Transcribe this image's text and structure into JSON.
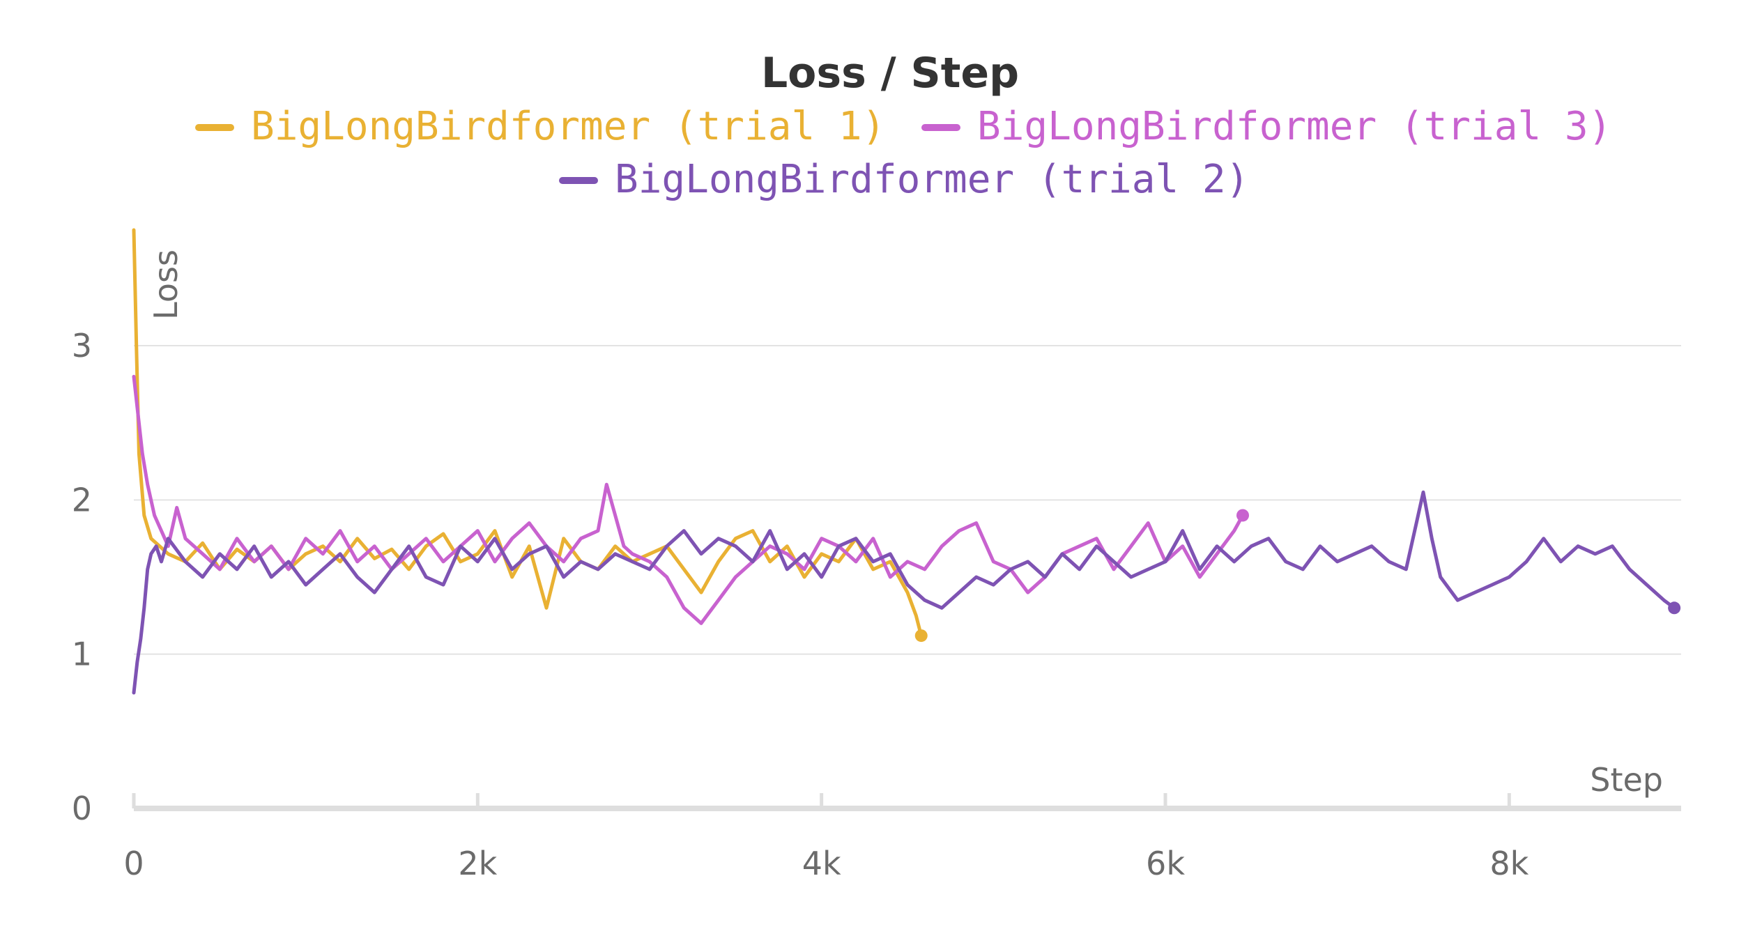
{
  "chart_data": {
    "type": "line",
    "title": "Loss / Step",
    "xlabel": "Step",
    "ylabel": "Loss",
    "xlim": [
      0,
      9000
    ],
    "ylim": [
      0,
      3.75
    ],
    "x_ticks": [
      0,
      2000,
      4000,
      6000,
      8000
    ],
    "x_tick_labels": [
      "0",
      "2k",
      "4k",
      "6k",
      "8k"
    ],
    "y_ticks": [
      0,
      1,
      2,
      3
    ],
    "y_tick_labels": [
      "0",
      "1",
      "2",
      "3"
    ],
    "grid": true,
    "legend_position": "top",
    "series": [
      {
        "name": "BigLongBirdformer (trial 1)",
        "color": "#E9B133",
        "x": [
          0,
          15,
          30,
          60,
          100,
          150,
          200,
          300,
          400,
          500,
          600,
          700,
          800,
          900,
          1000,
          1100,
          1200,
          1300,
          1400,
          1500,
          1600,
          1700,
          1800,
          1900,
          2000,
          2100,
          2200,
          2300,
          2400,
          2500,
          2600,
          2700,
          2800,
          2900,
          3000,
          3100,
          3200,
          3300,
          3400,
          3500,
          3600,
          3700,
          3800,
          3900,
          4000,
          4100,
          4200,
          4300,
          4400,
          4450,
          4500,
          4550,
          4580
        ],
        "y": [
          3.75,
          3.0,
          2.3,
          1.9,
          1.75,
          1.7,
          1.65,
          1.6,
          1.72,
          1.55,
          1.68,
          1.6,
          1.7,
          1.55,
          1.65,
          1.7,
          1.6,
          1.75,
          1.62,
          1.68,
          1.55,
          1.7,
          1.78,
          1.6,
          1.65,
          1.8,
          1.5,
          1.7,
          1.3,
          1.75,
          1.6,
          1.55,
          1.7,
          1.6,
          1.65,
          1.7,
          1.55,
          1.4,
          1.6,
          1.75,
          1.8,
          1.6,
          1.7,
          1.5,
          1.65,
          1.6,
          1.75,
          1.55,
          1.6,
          1.5,
          1.4,
          1.25,
          1.12
        ]
      },
      {
        "name": "BigLongBirdformer (trial 3)",
        "color": "#C862CF",
        "x": [
          0,
          20,
          50,
          80,
          120,
          160,
          200,
          250,
          300,
          400,
          500,
          600,
          700,
          800,
          900,
          1000,
          1100,
          1200,
          1300,
          1400,
          1500,
          1600,
          1700,
          1800,
          1900,
          2000,
          2100,
          2200,
          2300,
          2400,
          2500,
          2600,
          2700,
          2750,
          2800,
          2850,
          2900,
          3000,
          3100,
          3200,
          3300,
          3400,
          3500,
          3600,
          3700,
          3800,
          3900,
          4000,
          4100,
          4200,
          4300,
          4400,
          4500,
          4600,
          4700,
          4800,
          4900,
          5000,
          5100,
          5200,
          5300,
          5400,
          5500,
          5600,
          5700,
          5800,
          5900,
          6000,
          6100,
          6200,
          6300,
          6400,
          6450
        ],
        "y": [
          2.8,
          2.6,
          2.3,
          2.1,
          1.9,
          1.8,
          1.7,
          1.95,
          1.75,
          1.65,
          1.55,
          1.75,
          1.6,
          1.7,
          1.55,
          1.75,
          1.65,
          1.8,
          1.6,
          1.7,
          1.55,
          1.65,
          1.75,
          1.6,
          1.7,
          1.8,
          1.6,
          1.75,
          1.85,
          1.7,
          1.6,
          1.75,
          1.8,
          2.1,
          1.9,
          1.7,
          1.65,
          1.6,
          1.5,
          1.3,
          1.2,
          1.35,
          1.5,
          1.6,
          1.7,
          1.65,
          1.55,
          1.75,
          1.7,
          1.6,
          1.75,
          1.5,
          1.6,
          1.55,
          1.7,
          1.8,
          1.85,
          1.6,
          1.55,
          1.4,
          1.5,
          1.65,
          1.7,
          1.75,
          1.55,
          1.7,
          1.85,
          1.6,
          1.7,
          1.5,
          1.65,
          1.8,
          1.9
        ]
      },
      {
        "name": "BigLongBirdformer (trial 2)",
        "color": "#7E53B3",
        "x": [
          0,
          20,
          40,
          60,
          80,
          100,
          130,
          160,
          200,
          300,
          400,
          500,
          600,
          700,
          800,
          900,
          1000,
          1100,
          1200,
          1300,
          1400,
          1500,
          1600,
          1700,
          1800,
          1900,
          2000,
          2100,
          2200,
          2300,
          2400,
          2500,
          2600,
          2700,
          2800,
          2900,
          3000,
          3100,
          3200,
          3300,
          3400,
          3500,
          3600,
          3700,
          3800,
          3900,
          4000,
          4100,
          4200,
          4300,
          4400,
          4500,
          4600,
          4700,
          4800,
          4900,
          5000,
          5100,
          5200,
          5300,
          5400,
          5500,
          5600,
          5700,
          5800,
          5900,
          6000,
          6100,
          6200,
          6300,
          6400,
          6500,
          6600,
          6700,
          6800,
          6900,
          7000,
          7100,
          7200,
          7300,
          7400,
          7450,
          7500,
          7550,
          7600,
          7700,
          7800,
          7900,
          8000,
          8100,
          8200,
          8300,
          8400,
          8500,
          8600,
          8700,
          8800,
          8900,
          8960
        ],
        "y": [
          0.75,
          0.95,
          1.1,
          1.3,
          1.55,
          1.65,
          1.7,
          1.6,
          1.75,
          1.6,
          1.5,
          1.65,
          1.55,
          1.7,
          1.5,
          1.6,
          1.45,
          1.55,
          1.65,
          1.5,
          1.4,
          1.55,
          1.7,
          1.5,
          1.45,
          1.7,
          1.6,
          1.75,
          1.55,
          1.65,
          1.7,
          1.5,
          1.6,
          1.55,
          1.65,
          1.6,
          1.55,
          1.7,
          1.8,
          1.65,
          1.75,
          1.7,
          1.6,
          1.8,
          1.55,
          1.65,
          1.5,
          1.7,
          1.75,
          1.6,
          1.65,
          1.45,
          1.35,
          1.3,
          1.4,
          1.5,
          1.45,
          1.55,
          1.6,
          1.5,
          1.65,
          1.55,
          1.7,
          1.6,
          1.5,
          1.55,
          1.6,
          1.8,
          1.55,
          1.7,
          1.6,
          1.7,
          1.75,
          1.6,
          1.55,
          1.7,
          1.6,
          1.65,
          1.7,
          1.6,
          1.55,
          1.8,
          2.05,
          1.75,
          1.5,
          1.35,
          1.4,
          1.45,
          1.5,
          1.6,
          1.75,
          1.6,
          1.7,
          1.65,
          1.7,
          1.55,
          1.45,
          1.35,
          1.3
        ]
      }
    ]
  }
}
